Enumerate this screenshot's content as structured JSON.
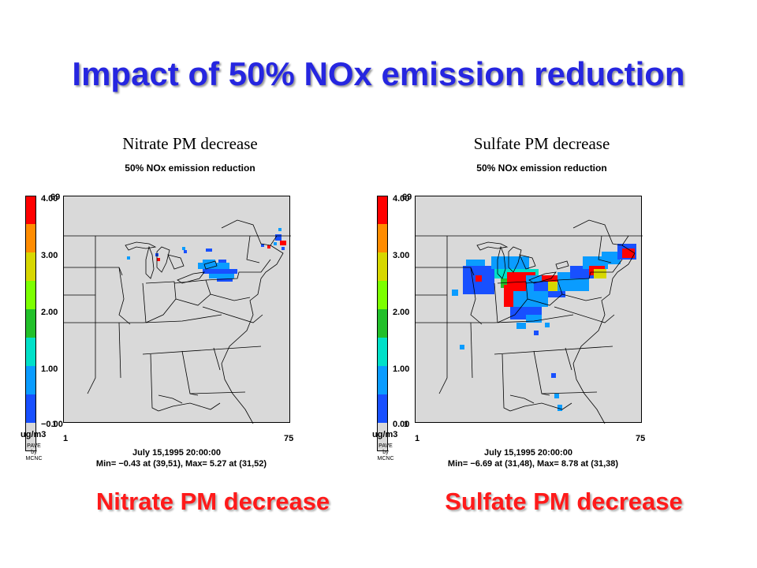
{
  "title": "Impact of 50% NOx emission reduction",
  "panels": [
    {
      "title": "Nitrate PM decrease",
      "subtitle": "50% NOx emission reduction",
      "legend_ticks": [
        "4.00",
        "3.00",
        "2.00",
        "1.00",
        "−0.00"
      ],
      "unit": "ug/m3",
      "credit": [
        "PAVE",
        "by",
        "MCNC"
      ],
      "x_min": "1",
      "x_max": "75",
      "y_min": "1",
      "y_max": "69",
      "datetime": "July 15,1995 20:00:00",
      "minmax": "Min=   −0.43 at (39,51), Max=    5.27 at (31,52)",
      "caption": "Nitrate PM decrease"
    },
    {
      "title": "Sulfate PM decrease",
      "subtitle": "50% NOx emission reduction",
      "legend_ticks": [
        "4.00",
        "3.00",
        "2.00",
        "1.00",
        "0.00"
      ],
      "unit": "ug/m3",
      "credit": [
        "PAVE",
        "by",
        "MCNC"
      ],
      "x_min": "1",
      "x_max": "75",
      "y_min": "1",
      "y_max": "69",
      "datetime": "July 15,1995 20:00:00",
      "minmax": "Min=   −6.69 at (31,48), Max=    8.78 at (31,38)",
      "caption": "Sulfate PM decrease"
    }
  ],
  "legend_colors": [
    "#ff0000",
    "#ff8c00",
    "#d7d700",
    "#7cff00",
    "#22c02a",
    "#00e0c8",
    "#0a9cff",
    "#1850ff",
    "#d9d9d9"
  ]
}
